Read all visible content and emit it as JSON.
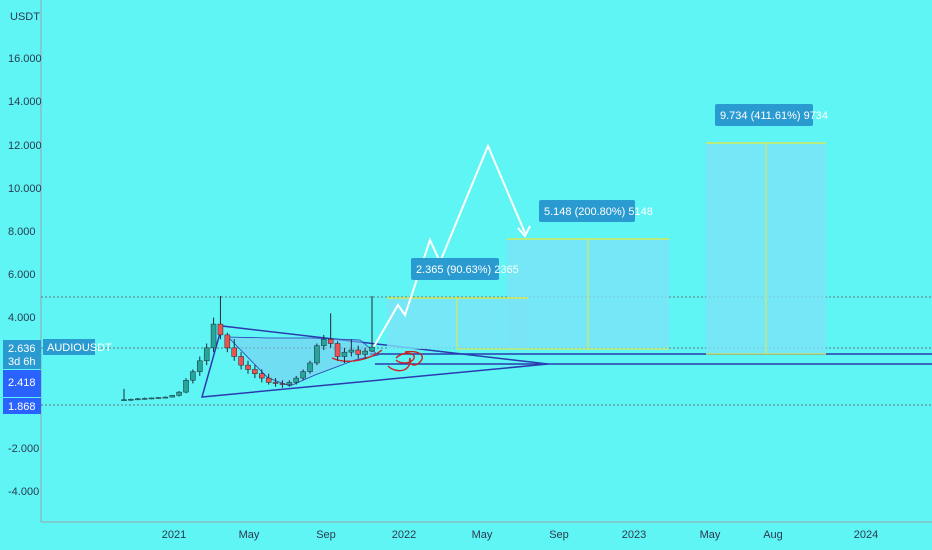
{
  "chart_data": {
    "type": "candlestick",
    "unit_label": "USDT",
    "symbol": "AUDIOUSDT",
    "y_axis_ticks": [
      "16.000",
      "14.000",
      "12.000",
      "10.000",
      "8.000",
      "6.000",
      "4.000",
      "-2.000",
      "-4.000"
    ],
    "x_axis_ticks": [
      "2021",
      "May",
      "Sep",
      "2022",
      "May",
      "Sep",
      "2023",
      "May",
      "Aug",
      "2024"
    ],
    "price_badges": [
      {
        "label": "2.636",
        "sublabel": "3d 6h",
        "color": "#2a9bd1"
      },
      {
        "label": "2.418",
        "color": "#2962ff"
      },
      {
        "label": "1.868",
        "color": "#2962ff"
      }
    ],
    "projections": [
      {
        "label": "2.365 (90.63%) 2365",
        "target": 4.95
      },
      {
        "label": "5.148 (200.80%) 5148",
        "target": 7.7
      },
      {
        "label": "9.734 (411.61%) 9734",
        "target": 12.1
      }
    ],
    "ohlc": [
      [
        0.2,
        0.7,
        0.15,
        0.2
      ],
      [
        0.2,
        0.25,
        0.15,
        0.22
      ],
      [
        0.22,
        0.28,
        0.18,
        0.24
      ],
      [
        0.24,
        0.3,
        0.2,
        0.26
      ],
      [
        0.26,
        0.3,
        0.22,
        0.28
      ],
      [
        0.28,
        0.32,
        0.24,
        0.3
      ],
      [
        0.3,
        0.35,
        0.26,
        0.32
      ],
      [
        0.32,
        0.42,
        0.3,
        0.4
      ],
      [
        0.4,
        0.6,
        0.35,
        0.55
      ],
      [
        0.55,
        1.2,
        0.5,
        1.1
      ],
      [
        1.1,
        1.6,
        0.95,
        1.5
      ],
      [
        1.5,
        2.2,
        1.3,
        2.0
      ],
      [
        2.0,
        2.8,
        1.8,
        2.6
      ],
      [
        2.6,
        4.0,
        2.4,
        3.7
      ],
      [
        3.7,
        5.0,
        3.0,
        3.2
      ],
      [
        3.2,
        3.3,
        2.4,
        2.6
      ],
      [
        2.6,
        3.0,
        2.0,
        2.2
      ],
      [
        2.2,
        2.4,
        1.6,
        1.8
      ],
      [
        1.8,
        2.0,
        1.4,
        1.6
      ],
      [
        1.6,
        1.8,
        1.2,
        1.4
      ],
      [
        1.4,
        1.6,
        1.0,
        1.2
      ],
      [
        1.2,
        1.4,
        0.9,
        1.0
      ],
      [
        1.0,
        1.2,
        0.8,
        0.95
      ],
      [
        0.95,
        1.1,
        0.75,
        0.9
      ],
      [
        0.9,
        1.1,
        0.8,
        1.0
      ],
      [
        1.0,
        1.3,
        0.9,
        1.2
      ],
      [
        1.2,
        1.6,
        1.1,
        1.5
      ],
      [
        1.5,
        2.0,
        1.4,
        1.9
      ],
      [
        1.9,
        2.8,
        1.8,
        2.7
      ],
      [
        2.7,
        3.2,
        2.5,
        3.0
      ],
      [
        3.0,
        4.2,
        2.6,
        2.8
      ],
      [
        2.8,
        2.9,
        2.0,
        2.2
      ],
      [
        2.2,
        2.6,
        1.9,
        2.4
      ],
      [
        2.4,
        3.0,
        2.2,
        2.5
      ],
      [
        2.5,
        2.7,
        2.1,
        2.3
      ],
      [
        2.3,
        2.6,
        2.1,
        2.45
      ],
      [
        2.45,
        5.0,
        2.4,
        2.636
      ]
    ]
  }
}
